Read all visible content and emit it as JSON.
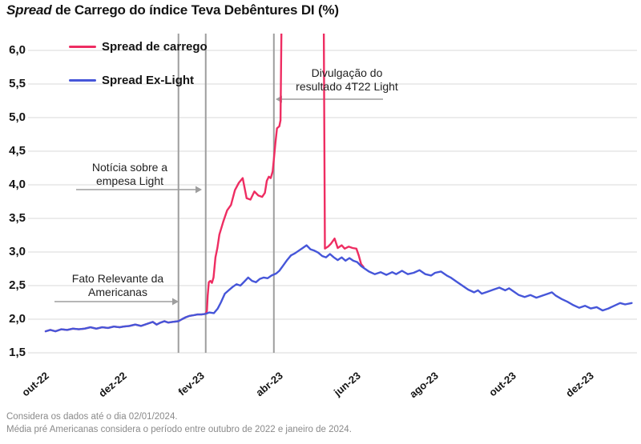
{
  "title": {
    "italic_part": "Spread",
    "rest_part": " de Carrego do índice Teva Debêntures DI (%)"
  },
  "legend": [
    {
      "label": "Spread de carrego",
      "color": "#ee2d62"
    },
    {
      "label": "Spread Ex-Light",
      "color": "#4656d9"
    }
  ],
  "annotations": [
    {
      "line1": "Fato Relevante da",
      "line2": "Americanas"
    },
    {
      "line1": "Notícia sobre a",
      "line2": "empesa Light"
    },
    {
      "line1": "Divulgação do",
      "line2": "resultado 4T22 Light"
    }
  ],
  "footnotes": [
    "Considera os dados até o dia 02/01/2024.",
    "Média pré Americanas considera o período entre outubro de 2022 e janeiro de 2024."
  ],
  "colors": {
    "carrego_pink": "#ee2d62",
    "exlight_blue": "#4656d9",
    "gridline": "#d9d9d9",
    "event_line": "#9e9e9e",
    "arrow": "#9e9e9e",
    "text": "#141414",
    "footnote_text": "#8a8a8a"
  },
  "chart_data": {
    "type": "line",
    "title": "Spread de Carrego do índice Teva Debêntures DI (%)",
    "x_axis": {
      "unit": "months since out-22",
      "tick_labels": [
        "out-22",
        "dez-22",
        "fev-23",
        "abr-23",
        "jun-23",
        "ago-23",
        "out-23",
        "dez-23"
      ],
      "tick_months": [
        0,
        2,
        4,
        6,
        8,
        10,
        12,
        14
      ],
      "range_months": [
        0,
        15.1
      ]
    },
    "y_axis": {
      "tick_labels": [
        "6,0",
        "5,5",
        "5,0",
        "4,5",
        "4,0",
        "3,5",
        "3,0",
        "2,5",
        "2,0",
        "1,5"
      ],
      "tick_values": [
        6.0,
        5.5,
        5.0,
        4.5,
        4.0,
        3.5,
        3.0,
        2.5,
        2.0,
        1.5
      ],
      "ylim": [
        1.5,
        6.25
      ],
      "unit": "%"
    },
    "grid": "horizontal",
    "legend_position": "top-left-inside",
    "events": [
      {
        "month": 3.41,
        "label": "Fato Relevante da Americanas"
      },
      {
        "month": 4.11,
        "label": "Notícia sobre a empesa Light"
      },
      {
        "month": 5.86,
        "label": "Divulgação do resultado 4T22 Light"
      }
    ],
    "series": [
      {
        "name": "Spread de carrego",
        "color": "#ee2d62",
        "points": [
          [
            0,
            1.82
          ],
          [
            0.12,
            1.84
          ],
          [
            0.25,
            1.82
          ],
          [
            0.4,
            1.85
          ],
          [
            0.55,
            1.84
          ],
          [
            0.7,
            1.86
          ],
          [
            0.85,
            1.85
          ],
          [
            1.0,
            1.86
          ],
          [
            1.15,
            1.88
          ],
          [
            1.3,
            1.86
          ],
          [
            1.45,
            1.88
          ],
          [
            1.6,
            1.87
          ],
          [
            1.75,
            1.89
          ],
          [
            1.9,
            1.88
          ],
          [
            2.0,
            1.89
          ],
          [
            2.15,
            1.9
          ],
          [
            2.3,
            1.92
          ],
          [
            2.45,
            1.9
          ],
          [
            2.6,
            1.93
          ],
          [
            2.75,
            1.96
          ],
          [
            2.85,
            1.92
          ],
          [
            2.95,
            1.95
          ],
          [
            3.05,
            1.97
          ],
          [
            3.15,
            1.95
          ],
          [
            3.25,
            1.96
          ],
          [
            3.41,
            1.97
          ],
          [
            3.5,
            2.0
          ],
          [
            3.6,
            2.03
          ],
          [
            3.7,
            2.05
          ],
          [
            3.8,
            2.06
          ],
          [
            3.9,
            2.07
          ],
          [
            4.0,
            2.07
          ],
          [
            4.11,
            2.08
          ],
          [
            4.14,
            2.12
          ],
          [
            4.16,
            2.35
          ],
          [
            4.19,
            2.55
          ],
          [
            4.23,
            2.57
          ],
          [
            4.27,
            2.54
          ],
          [
            4.31,
            2.62
          ],
          [
            4.36,
            2.92
          ],
          [
            4.41,
            3.06
          ],
          [
            4.46,
            3.26
          ],
          [
            4.56,
            3.45
          ],
          [
            4.66,
            3.62
          ],
          [
            4.76,
            3.7
          ],
          [
            4.86,
            3.92
          ],
          [
            4.96,
            4.03
          ],
          [
            5.06,
            4.1
          ],
          [
            5.16,
            3.8
          ],
          [
            5.26,
            3.78
          ],
          [
            5.36,
            3.9
          ],
          [
            5.46,
            3.84
          ],
          [
            5.56,
            3.82
          ],
          [
            5.63,
            3.88
          ],
          [
            5.68,
            4.06
          ],
          [
            5.73,
            4.12
          ],
          [
            5.78,
            4.1
          ],
          [
            5.83,
            4.2
          ],
          [
            5.86,
            4.38
          ],
          [
            5.9,
            4.62
          ],
          [
            5.94,
            4.84
          ],
          [
            6.0,
            4.87
          ],
          [
            6.03,
            4.96
          ],
          [
            6.06,
            6.6
          ],
          [
            7.14,
            6.6
          ],
          [
            7.17,
            3.05
          ],
          [
            7.25,
            3.08
          ],
          [
            7.32,
            3.12
          ],
          [
            7.42,
            3.2
          ],
          [
            7.5,
            3.06
          ],
          [
            7.6,
            3.1
          ],
          [
            7.68,
            3.05
          ],
          [
            7.78,
            3.08
          ],
          [
            7.88,
            3.06
          ],
          [
            7.98,
            3.05
          ],
          [
            8.04,
            2.95
          ],
          [
            8.1,
            2.82
          ],
          [
            8.16,
            2.78
          ]
        ]
      },
      {
        "name": "Spread Ex-Light",
        "color": "#4656d9",
        "points": [
          [
            0,
            1.82
          ],
          [
            0.12,
            1.84
          ],
          [
            0.25,
            1.82
          ],
          [
            0.4,
            1.85
          ],
          [
            0.55,
            1.84
          ],
          [
            0.7,
            1.86
          ],
          [
            0.85,
            1.85
          ],
          [
            1.0,
            1.86
          ],
          [
            1.15,
            1.88
          ],
          [
            1.3,
            1.86
          ],
          [
            1.45,
            1.88
          ],
          [
            1.6,
            1.87
          ],
          [
            1.75,
            1.89
          ],
          [
            1.9,
            1.88
          ],
          [
            2.0,
            1.89
          ],
          [
            2.15,
            1.9
          ],
          [
            2.3,
            1.92
          ],
          [
            2.45,
            1.9
          ],
          [
            2.6,
            1.93
          ],
          [
            2.75,
            1.96
          ],
          [
            2.85,
            1.92
          ],
          [
            2.95,
            1.95
          ],
          [
            3.05,
            1.97
          ],
          [
            3.15,
            1.95
          ],
          [
            3.25,
            1.96
          ],
          [
            3.41,
            1.97
          ],
          [
            3.5,
            2.0
          ],
          [
            3.6,
            2.03
          ],
          [
            3.7,
            2.05
          ],
          [
            3.8,
            2.06
          ],
          [
            3.9,
            2.07
          ],
          [
            4.0,
            2.07
          ],
          [
            4.11,
            2.08
          ],
          [
            4.2,
            2.1
          ],
          [
            4.32,
            2.09
          ],
          [
            4.42,
            2.16
          ],
          [
            4.5,
            2.25
          ],
          [
            4.6,
            2.38
          ],
          [
            4.7,
            2.43
          ],
          [
            4.8,
            2.48
          ],
          [
            4.9,
            2.52
          ],
          [
            5.0,
            2.5
          ],
          [
            5.1,
            2.56
          ],
          [
            5.2,
            2.62
          ],
          [
            5.3,
            2.57
          ],
          [
            5.4,
            2.55
          ],
          [
            5.5,
            2.6
          ],
          [
            5.6,
            2.62
          ],
          [
            5.7,
            2.61
          ],
          [
            5.8,
            2.65
          ],
          [
            5.92,
            2.68
          ],
          [
            6.0,
            2.72
          ],
          [
            6.1,
            2.8
          ],
          [
            6.2,
            2.88
          ],
          [
            6.3,
            2.95
          ],
          [
            6.4,
            2.98
          ],
          [
            6.5,
            3.02
          ],
          [
            6.6,
            3.06
          ],
          [
            6.7,
            3.1
          ],
          [
            6.8,
            3.04
          ],
          [
            6.9,
            3.02
          ],
          [
            7.0,
            2.99
          ],
          [
            7.1,
            2.94
          ],
          [
            7.2,
            2.92
          ],
          [
            7.3,
            2.97
          ],
          [
            7.4,
            2.92
          ],
          [
            7.5,
            2.88
          ],
          [
            7.6,
            2.92
          ],
          [
            7.7,
            2.87
          ],
          [
            7.8,
            2.91
          ],
          [
            7.9,
            2.87
          ],
          [
            8.0,
            2.85
          ],
          [
            8.1,
            2.79
          ],
          [
            8.2,
            2.75
          ],
          [
            8.3,
            2.71
          ],
          [
            8.45,
            2.67
          ],
          [
            8.6,
            2.7
          ],
          [
            8.75,
            2.66
          ],
          [
            8.9,
            2.7
          ],
          [
            9.0,
            2.67
          ],
          [
            9.15,
            2.72
          ],
          [
            9.3,
            2.67
          ],
          [
            9.45,
            2.69
          ],
          [
            9.6,
            2.73
          ],
          [
            9.75,
            2.67
          ],
          [
            9.9,
            2.65
          ],
          [
            10.0,
            2.69
          ],
          [
            10.15,
            2.71
          ],
          [
            10.3,
            2.65
          ],
          [
            10.4,
            2.62
          ],
          [
            10.55,
            2.56
          ],
          [
            10.7,
            2.5
          ],
          [
            10.85,
            2.44
          ],
          [
            11.0,
            2.4
          ],
          [
            11.1,
            2.43
          ],
          [
            11.2,
            2.38
          ],
          [
            11.35,
            2.41
          ],
          [
            11.5,
            2.44
          ],
          [
            11.65,
            2.47
          ],
          [
            11.8,
            2.43
          ],
          [
            11.9,
            2.46
          ],
          [
            12.0,
            2.42
          ],
          [
            12.15,
            2.36
          ],
          [
            12.3,
            2.33
          ],
          [
            12.45,
            2.36
          ],
          [
            12.6,
            2.32
          ],
          [
            12.75,
            2.35
          ],
          [
            12.9,
            2.38
          ],
          [
            13.0,
            2.4
          ],
          [
            13.1,
            2.35
          ],
          [
            13.25,
            2.3
          ],
          [
            13.4,
            2.26
          ],
          [
            13.55,
            2.21
          ],
          [
            13.7,
            2.17
          ],
          [
            13.85,
            2.2
          ],
          [
            14.0,
            2.16
          ],
          [
            14.15,
            2.18
          ],
          [
            14.3,
            2.13
          ],
          [
            14.45,
            2.16
          ],
          [
            14.6,
            2.2
          ],
          [
            14.75,
            2.24
          ],
          [
            14.88,
            2.22
          ],
          [
            15.05,
            2.24
          ]
        ]
      }
    ]
  }
}
